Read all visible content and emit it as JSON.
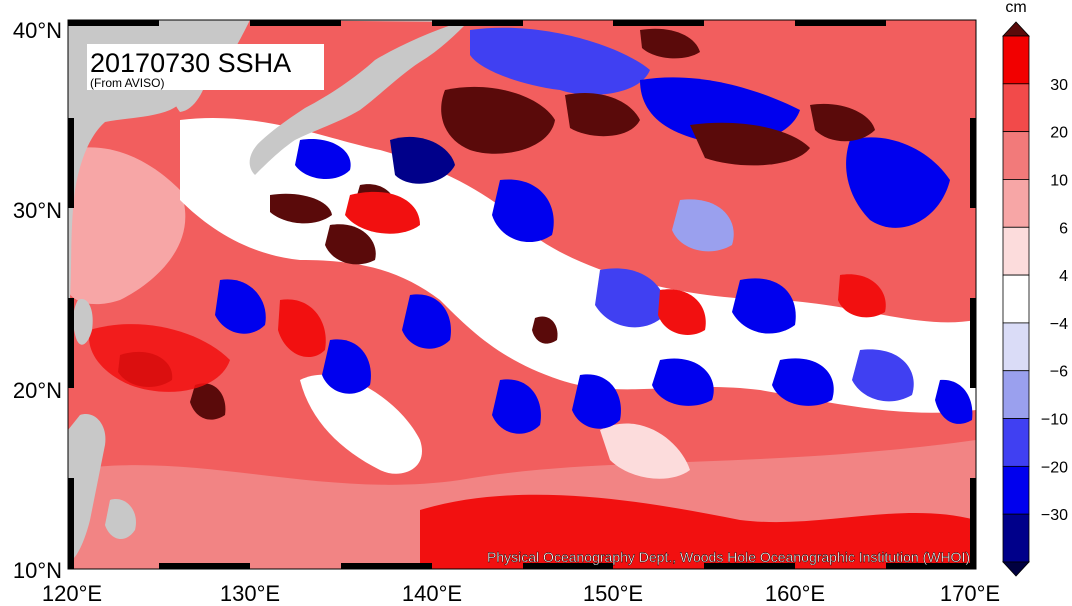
{
  "title": "20170730 SSHA",
  "source_note": "(From AVISO)",
  "credit": "Physical Oceanography Dept., Woods Hole Oceanographic Institution (WHOI)",
  "colorbar": {
    "unit": "cm",
    "labels": [
      "30",
      "20",
      "10",
      "6",
      "4",
      "−4",
      "−6",
      "−10",
      "−20",
      "−30"
    ],
    "colors": [
      "#5a0a0a",
      "#f20000",
      "#f24a4a",
      "#f27a7a",
      "#f7a6a6",
      "#fcdcdc",
      "#ffffff",
      "#dadcf7",
      "#9aa0ee",
      "#4040f2",
      "#0000ee",
      "#00008a",
      "#000040"
    ]
  },
  "axes": {
    "lon_labels": [
      "120°E",
      "130°E",
      "140°E",
      "150°E",
      "160°E",
      "170°E"
    ],
    "lat_labels": [
      "40°N",
      "30°N",
      "20°N",
      "10°N"
    ]
  },
  "colors": {
    "land": "#c8c8c8",
    "strong_positive": "#5a0a0a",
    "positive": "#f24a4a",
    "negative": "#0000ee",
    "strong_negative": "#000040"
  }
}
